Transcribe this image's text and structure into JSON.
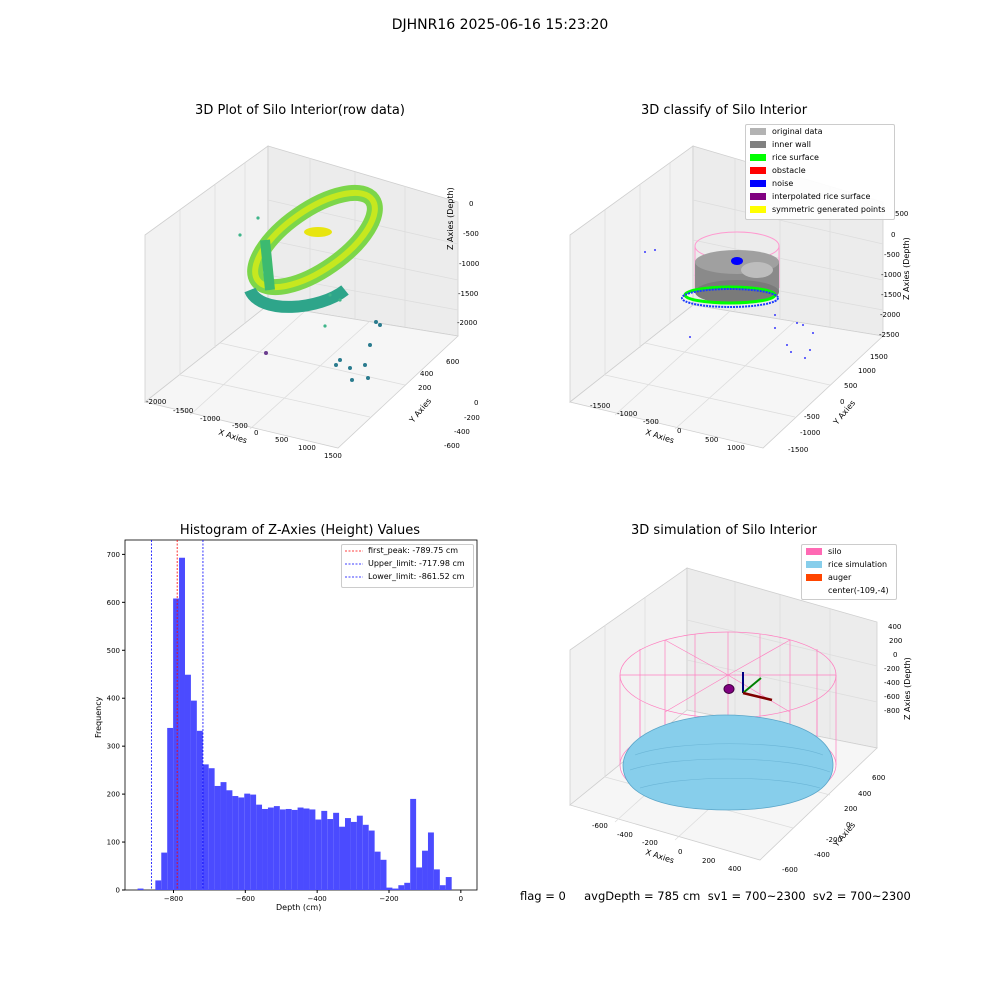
{
  "suptitle": "DJHNR16 2025-06-16 15:23:20",
  "panel1": {
    "title": "3D Plot of Silo Interior(row data)",
    "xlabel": "X Axies",
    "ylabel": "Y Axies",
    "zlabel": "Z Axies (Depth)",
    "xticks": [
      "-2000",
      "-1500",
      "-1000",
      "-500",
      "0",
      "500",
      "1000",
      "1500"
    ],
    "yticks": [
      "-600",
      "-400",
      "-200",
      "0",
      "200",
      "400",
      "600"
    ],
    "zticks": [
      "0",
      "-500",
      "-1000",
      "-1500",
      "-2000"
    ]
  },
  "panel2": {
    "title": "3D classify of Silo Interior",
    "xlabel": "X Axies",
    "ylabel": "Y Axies",
    "zlabel": "Z Axies (Depth)",
    "xticks": [
      "-1500",
      "-1000",
      "-500",
      "0",
      "500",
      "1000"
    ],
    "yticks": [
      "-1500",
      "-1000",
      "-500",
      "0",
      "500",
      "1000",
      "1500"
    ],
    "zticks": [
      "500",
      "0",
      "-500",
      "-1000",
      "-1500",
      "-2000",
      "-2500"
    ],
    "legend": [
      {
        "label": "original data",
        "color": "#b3b3b3"
      },
      {
        "label": "inner wall",
        "color": "#808080"
      },
      {
        "label": "rice surface",
        "color": "#00ff00"
      },
      {
        "label": "obstacle",
        "color": "#ff0000"
      },
      {
        "label": "noise",
        "color": "#0000ff"
      },
      {
        "label": "interpolated rice surface",
        "color": "#800080"
      },
      {
        "label": "symmetric generated points",
        "color": "#ffff00"
      }
    ]
  },
  "panel4": {
    "title": "3D simulation of Silo Interior",
    "xlabel": "X Axies",
    "ylabel": "Y Axies",
    "zlabel": "Z Axies (Depth)",
    "xticks": [
      "-600",
      "-400",
      "-200",
      "0",
      "200",
      "400"
    ],
    "yticks": [
      "-600",
      "-400",
      "-200",
      "0",
      "200",
      "400",
      "600"
    ],
    "zticks": [
      "400",
      "200",
      "0",
      "-200",
      "-400",
      "-600",
      "-800"
    ],
    "legend": [
      {
        "label": "silo",
        "color": "#ff69b4"
      },
      {
        "label": "rice simulation",
        "color": "#87ceeb"
      },
      {
        "label": "auger",
        "color": "#ff4500"
      },
      {
        "label": "center(-109,-4)",
        "color": "none"
      }
    ]
  },
  "bottom_text": "flag = 0     avgDepth = 785 cm  sv1 = 700~2300  sv2 = 700~2300",
  "chart_data": [
    {
      "type": "bar",
      "title": "Histogram of Z-Axies (Height) Values",
      "xlabel": "Depth (cm)",
      "ylabel": "Frequency",
      "xlim": [
        -935,
        45
      ],
      "ylim": [
        0,
        730
      ],
      "xticks": [
        -800,
        -600,
        -400,
        -200,
        0
      ],
      "yticks": [
        0,
        100,
        200,
        300,
        400,
        500,
        600,
        700
      ],
      "bar_color": "#4b4bff",
      "bin_start": -900,
      "bin_width": 16.5,
      "values": [
        3,
        0,
        0,
        20,
        78,
        338,
        608,
        693,
        449,
        395,
        332,
        262,
        254,
        217,
        225,
        208,
        196,
        193,
        201,
        199,
        178,
        169,
        172,
        175,
        168,
        169,
        167,
        172,
        170,
        168,
        147,
        165,
        148,
        161,
        132,
        150,
        142,
        155,
        136,
        124,
        80,
        63,
        5,
        3,
        10,
        15,
        190,
        47,
        82,
        120,
        43,
        10,
        27
      ],
      "lines": [
        {
          "label": "first_peak: -789.75 cm",
          "x": -789.75,
          "color": "#ff0000"
        },
        {
          "label": "Upper_limit: -717.98 cm",
          "x": -717.98,
          "color": "#0000ff"
        },
        {
          "label": "Lower_limit: -861.52 cm",
          "x": -861.52,
          "color": "#0000ff"
        }
      ],
      "legend_position": "top-right"
    }
  ]
}
